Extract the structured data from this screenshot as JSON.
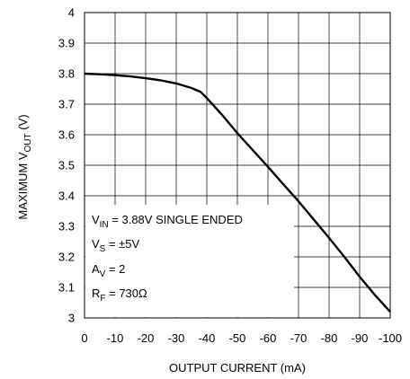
{
  "chart_data": {
    "type": "line",
    "title": "",
    "xlabel": "OUTPUT CURRENT (mA)",
    "ylabel": {
      "pre": "MAXIMUM V",
      "sub": "OUT",
      "post": " (V)"
    },
    "xlim": [
      0,
      -100
    ],
    "ylim": [
      3,
      4
    ],
    "x_ticks": [
      "0",
      "-10",
      "-20",
      "-30",
      "-40",
      "-50",
      "-60",
      "-70",
      "-80",
      "-90",
      "-100"
    ],
    "y_ticks": [
      "3",
      "3.1",
      "3.2",
      "3.3",
      "3.4",
      "3.5",
      "3.6",
      "3.7",
      "3.8",
      "3.9",
      "4"
    ],
    "grid": true,
    "series": [
      {
        "x": [
          0,
          -5,
          -10,
          -15,
          -20,
          -25,
          -30,
          -35,
          -38,
          -40,
          -45,
          -50,
          -55,
          -60,
          -65,
          -70,
          -75,
          -80,
          -85,
          -90,
          -95,
          -100
        ],
        "y": [
          3.8,
          3.798,
          3.795,
          3.791,
          3.785,
          3.778,
          3.768,
          3.753,
          3.74,
          3.72,
          3.665,
          3.605,
          3.55,
          3.495,
          3.438,
          3.382,
          3.322,
          3.262,
          3.2,
          3.135,
          3.075,
          3.02
        ]
      }
    ],
    "annotations": [
      {
        "pre": "V",
        "sub": "IN",
        "post": " = 3.88V SINGLE ENDED"
      },
      {
        "pre": "V",
        "sub": "S",
        "post": " = ±5V"
      },
      {
        "pre": "A",
        "sub": "V",
        "post": " = 2"
      },
      {
        "pre": "R",
        "sub": "F",
        "post": " = 730Ω"
      }
    ]
  }
}
